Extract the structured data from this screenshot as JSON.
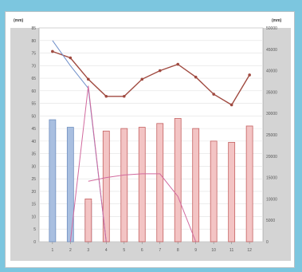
{
  "chart_data": {
    "type": "bar",
    "left_unit": "(mm)",
    "right_unit": "(mm)",
    "categories": [
      "1",
      "2",
      "3",
      "4",
      "5",
      "6",
      "7",
      "8",
      "9",
      "10",
      "11",
      "12"
    ],
    "left_ticks": [
      0,
      5,
      10,
      15,
      20,
      25,
      30,
      35,
      40,
      45,
      50,
      55,
      60,
      65,
      70,
      75,
      80,
      85
    ],
    "right_ticks": [
      0,
      5000,
      10000,
      15000,
      20000,
      25000,
      30000,
      35000,
      40000,
      45000,
      50000
    ],
    "ylim_left": [
      0,
      85
    ],
    "ylim_right": [
      0,
      50000
    ],
    "grid": true,
    "colors": {
      "background": "#7cc6df",
      "plot": "#d4d4d4",
      "blue_bar": "#a9bfe0",
      "blue_bar_border": "#6f8fc0",
      "pink_bar": "#f3c4c4",
      "pink_bar_border": "#c46060",
      "line_dark": "#a04a40",
      "line_blue": "#6f8fc9",
      "line_magenta": "#d26a9e"
    },
    "series": [
      {
        "type": "bar",
        "color": "blue",
        "values": [
          48.5,
          45.5,
          16,
          null,
          null,
          null,
          null,
          null,
          null,
          null,
          null,
          null
        ]
      },
      {
        "type": "bar",
        "color": "pink",
        "values": [
          null,
          null,
          17,
          44,
          45,
          45.5,
          47,
          49,
          45,
          40,
          39.5,
          46
        ]
      },
      {
        "type": "line",
        "axis": "right",
        "color": "dark-red",
        "marker": "circle",
        "values": [
          44500,
          43000,
          38000,
          34000,
          34000,
          38000,
          40000,
          41500,
          38500,
          34500,
          32000,
          39000
        ]
      },
      {
        "type": "line",
        "axis": "left",
        "color": "blue",
        "values": [
          80,
          70,
          61,
          0,
          null,
          null,
          null,
          null,
          null,
          null,
          null,
          null
        ]
      },
      {
        "type": "line",
        "axis": "left",
        "color": "magenta",
        "values": [
          null,
          0,
          62,
          0,
          null,
          null,
          null,
          null,
          null,
          null,
          null,
          null
        ]
      },
      {
        "type": "line",
        "axis": "left",
        "color": "magenta",
        "values": [
          null,
          null,
          24,
          25.5,
          26.5,
          27,
          27,
          18,
          0,
          null,
          null,
          null
        ]
      }
    ]
  }
}
